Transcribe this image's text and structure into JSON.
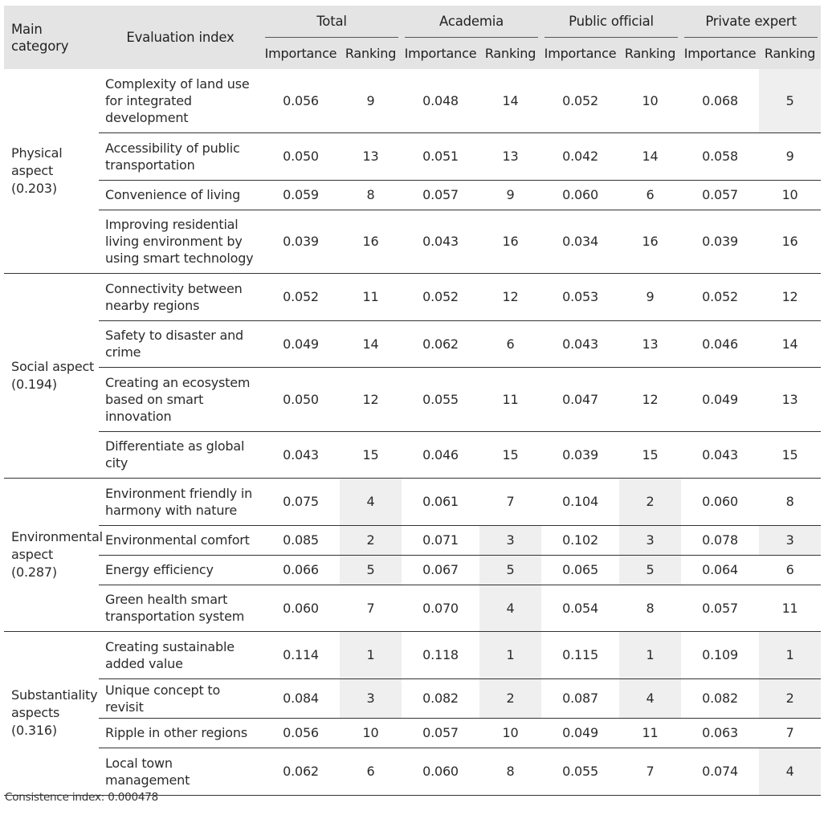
{
  "header": {
    "main_category": "Main category",
    "evaluation_index": "Evaluation index",
    "groups": [
      "Total",
      "Academia",
      "Public official",
      "Private expert"
    ],
    "importance": "Importance",
    "ranking": "Ranking"
  },
  "categories": [
    {
      "label": "Physical aspect (0.203)",
      "rows": [
        {
          "index": "Complexity of land use for integrated development",
          "values": [
            "0.056",
            "9",
            "0.048",
            "14",
            "0.052",
            "10",
            "0.068",
            "5"
          ],
          "highlight": [
            false,
            false,
            false,
            true
          ]
        },
        {
          "index": "Accessibility of public transportation",
          "values": [
            "0.050",
            "13",
            "0.051",
            "13",
            "0.042",
            "14",
            "0.058",
            "9"
          ],
          "highlight": [
            false,
            false,
            false,
            false
          ]
        },
        {
          "index": "Convenience of living",
          "values": [
            "0.059",
            "8",
            "0.057",
            "9",
            "0.060",
            "6",
            "0.057",
            "10"
          ],
          "highlight": [
            false,
            false,
            false,
            false
          ]
        },
        {
          "index": "Improving residential living environment by using smart technology",
          "values": [
            "0.039",
            "16",
            "0.043",
            "16",
            "0.034",
            "16",
            "0.039",
            "16"
          ],
          "highlight": [
            false,
            false,
            false,
            false
          ]
        }
      ]
    },
    {
      "label": "Social aspect (0.194)",
      "rows": [
        {
          "index": "Connectivity between nearby regions",
          "values": [
            "0.052",
            "11",
            "0.052",
            "12",
            "0.053",
            "9",
            "0.052",
            "12"
          ],
          "highlight": [
            false,
            false,
            false,
            false
          ]
        },
        {
          "index": "Safety to disaster and crime",
          "values": [
            "0.049",
            "14",
            "0.062",
            "6",
            "0.043",
            "13",
            "0.046",
            "14"
          ],
          "highlight": [
            false,
            false,
            false,
            false
          ]
        },
        {
          "index": "Creating an ecosystem based on smart innovation",
          "values": [
            "0.050",
            "12",
            "0.055",
            "11",
            "0.047",
            "12",
            "0.049",
            "13"
          ],
          "highlight": [
            false,
            false,
            false,
            false
          ]
        },
        {
          "index": "Differentiate as global city",
          "values": [
            "0.043",
            "15",
            "0.046",
            "15",
            "0.039",
            "15",
            "0.043",
            "15"
          ],
          "highlight": [
            false,
            false,
            false,
            false
          ]
        }
      ]
    },
    {
      "label": "Environmental aspect (0.287)",
      "rows": [
        {
          "index": "Environment friendly in harmony with nature",
          "values": [
            "0.075",
            "4",
            "0.061",
            "7",
            "0.104",
            "2",
            "0.060",
            "8"
          ],
          "highlight": [
            true,
            false,
            true,
            false
          ]
        },
        {
          "index": "Environmental comfort",
          "values": [
            "0.085",
            "2",
            "0.071",
            "3",
            "0.102",
            "3",
            "0.078",
            "3"
          ],
          "highlight": [
            true,
            true,
            true,
            true
          ]
        },
        {
          "index": "Energy efficiency",
          "values": [
            "0.066",
            "5",
            "0.067",
            "5",
            "0.065",
            "5",
            "0.064",
            "6"
          ],
          "highlight": [
            true,
            true,
            true,
            false
          ]
        },
        {
          "index": "Green health smart transportation system",
          "values": [
            "0.060",
            "7",
            "0.070",
            "4",
            "0.054",
            "8",
            "0.057",
            "11"
          ],
          "highlight": [
            false,
            true,
            false,
            false
          ]
        }
      ]
    },
    {
      "label": "Substantiality aspects (0.316)",
      "rows": [
        {
          "index": "Creating sustainable added value",
          "values": [
            "0.114",
            "1",
            "0.118",
            "1",
            "0.115",
            "1",
            "0.109",
            "1"
          ],
          "highlight": [
            true,
            true,
            true,
            true
          ]
        },
        {
          "index": "Unique concept to revisit",
          "values": [
            "0.084",
            "3",
            "0.082",
            "2",
            "0.087",
            "4",
            "0.082",
            "2"
          ],
          "highlight": [
            true,
            true,
            true,
            true
          ]
        },
        {
          "index": "Ripple in other regions",
          "values": [
            "0.056",
            "10",
            "0.057",
            "10",
            "0.049",
            "11",
            "0.063",
            "7"
          ],
          "highlight": [
            false,
            false,
            false,
            false
          ]
        },
        {
          "index": "Local town management",
          "values": [
            "0.062",
            "6",
            "0.060",
            "8",
            "0.055",
            "7",
            "0.074",
            "4"
          ],
          "highlight": [
            false,
            false,
            false,
            true
          ]
        }
      ]
    }
  ],
  "footnote": "Consistence index: 0.000478",
  "colors": {
    "header_bg": "#e4e4e4",
    "highlight_bg": "#efefef",
    "rule": "#333333"
  }
}
